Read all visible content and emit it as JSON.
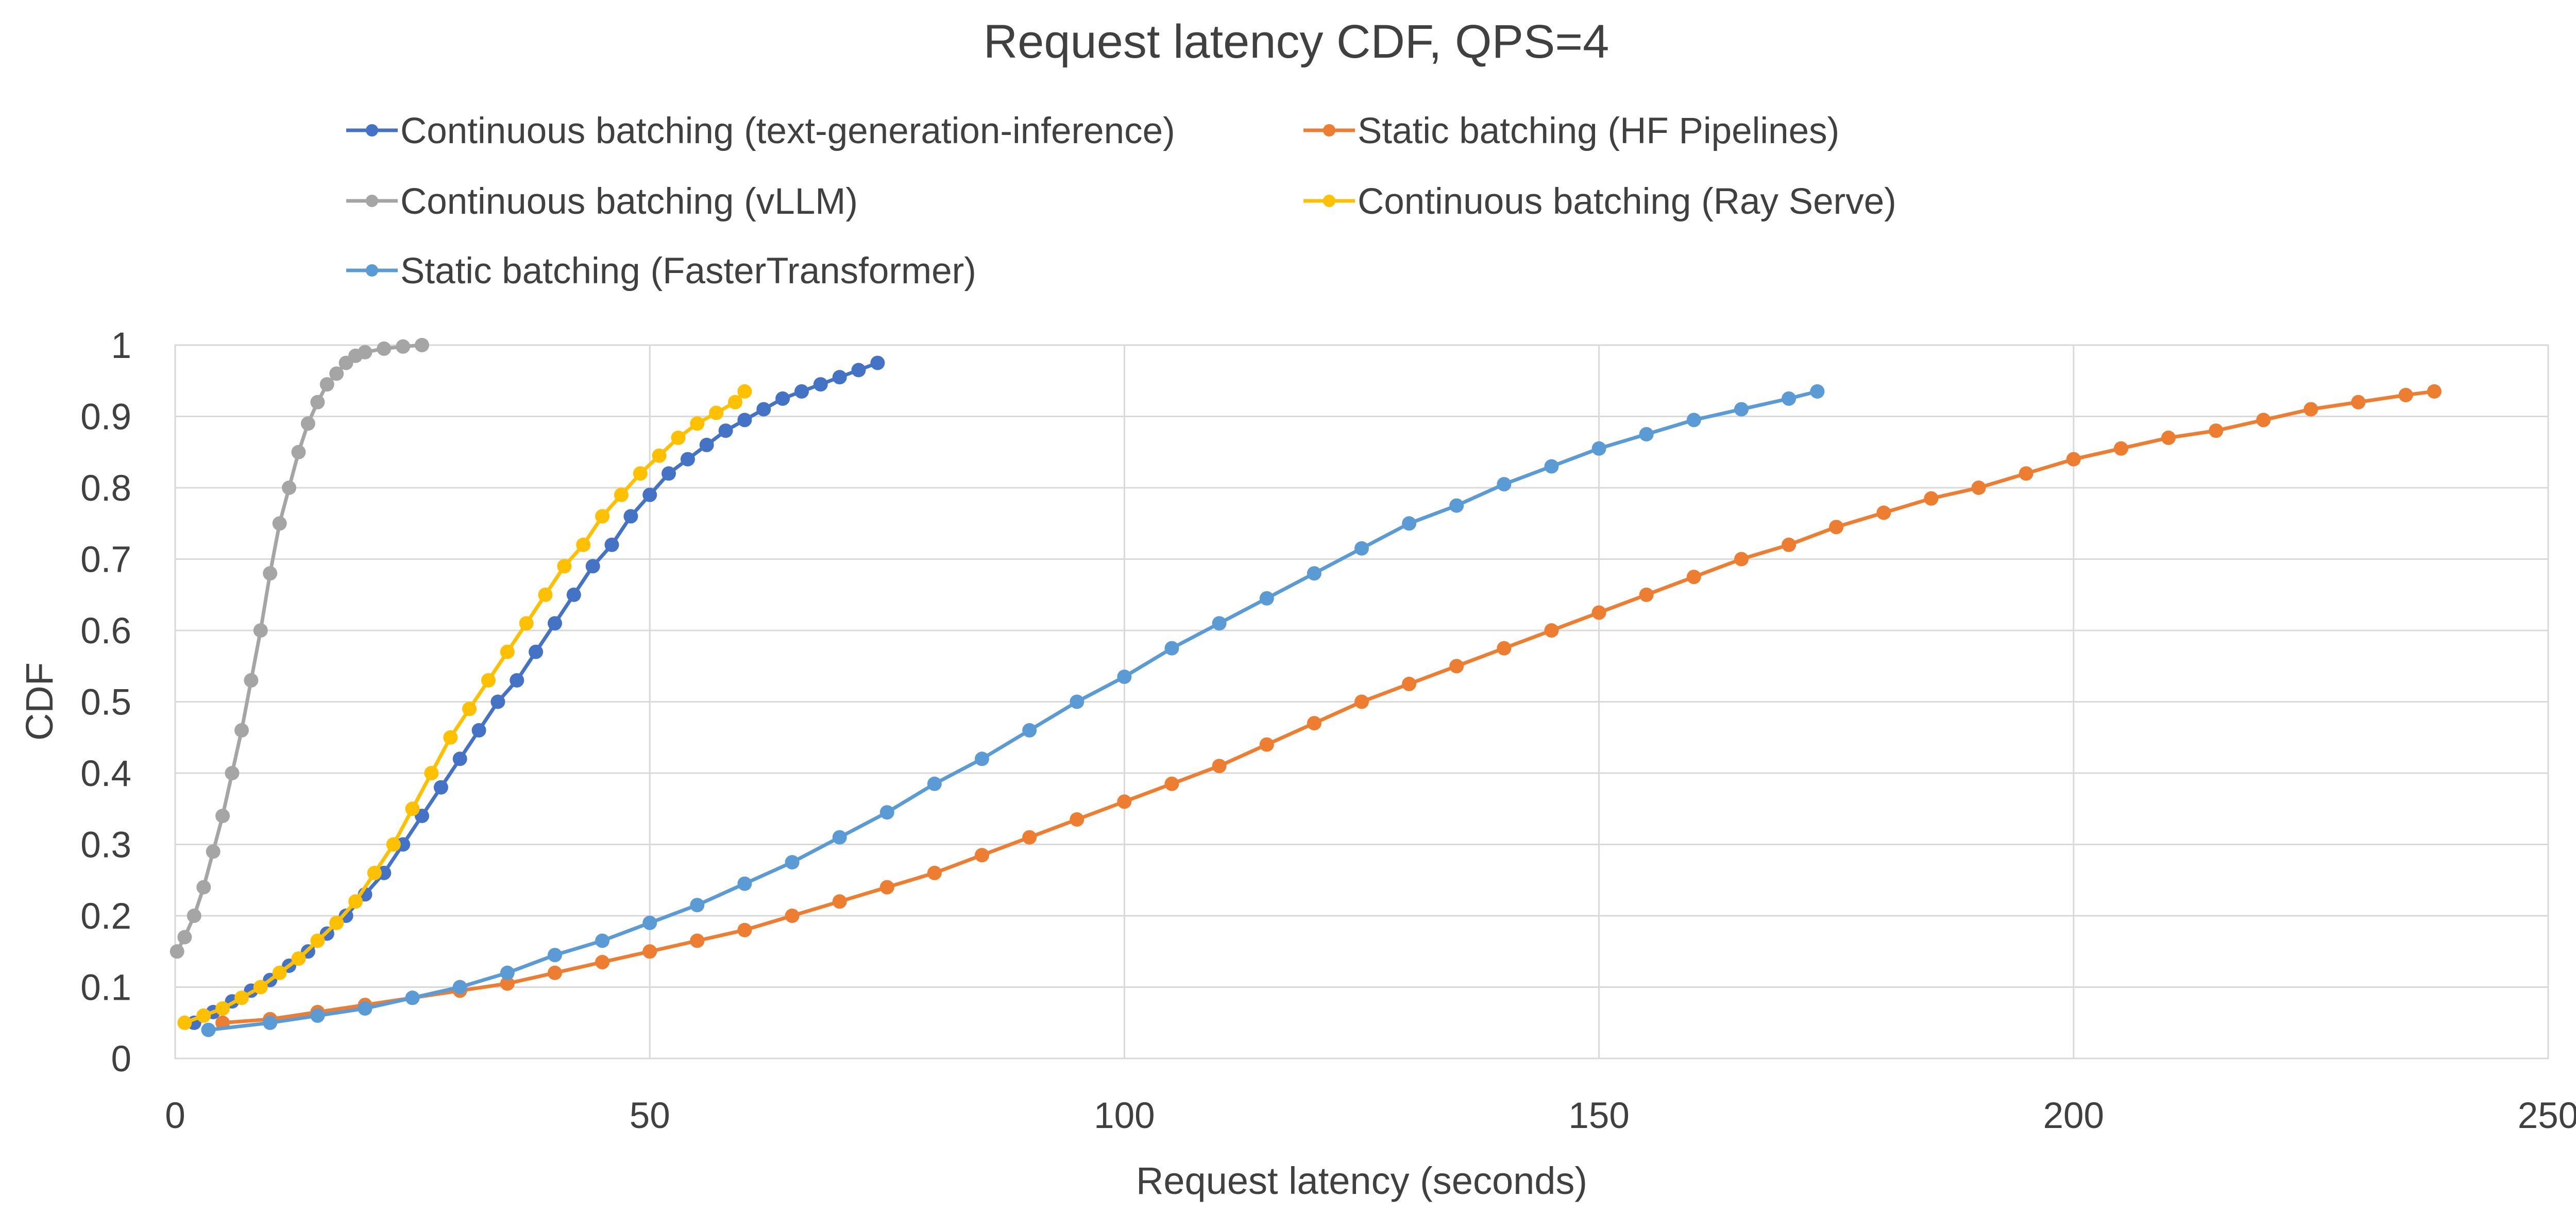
{
  "chart_data": {
    "type": "line",
    "title": "Request latency CDF, QPS=4",
    "xlabel": "Request latency (seconds)",
    "ylabel": "CDF",
    "xlim": [
      0,
      250
    ],
    "ylim": [
      0,
      1
    ],
    "x_ticks": [
      "0",
      "50",
      "100",
      "150",
      "200",
      "250"
    ],
    "y_ticks": [
      "0",
      "0.1",
      "0.2",
      "0.3",
      "0.4",
      "0.5",
      "0.6",
      "0.7",
      "0.8",
      "0.9",
      "1"
    ],
    "grid": true,
    "legend_position": "top",
    "series": [
      {
        "name": "Continuous batching (text-generation-inference)",
        "color": "#4472C4",
        "points": [
          [
            2,
            0.05
          ],
          [
            4,
            0.065
          ],
          [
            6,
            0.08
          ],
          [
            8,
            0.095
          ],
          [
            10,
            0.11
          ],
          [
            12,
            0.13
          ],
          [
            14,
            0.15
          ],
          [
            16,
            0.175
          ],
          [
            18,
            0.2
          ],
          [
            20,
            0.23
          ],
          [
            22,
            0.26
          ],
          [
            24,
            0.3
          ],
          [
            26,
            0.34
          ],
          [
            28,
            0.38
          ],
          [
            30,
            0.42
          ],
          [
            32,
            0.46
          ],
          [
            34,
            0.5
          ],
          [
            36,
            0.53
          ],
          [
            38,
            0.57
          ],
          [
            40,
            0.61
          ],
          [
            42,
            0.65
          ],
          [
            44,
            0.69
          ],
          [
            46,
            0.72
          ],
          [
            48,
            0.76
          ],
          [
            50,
            0.79
          ],
          [
            52,
            0.82
          ],
          [
            54,
            0.84
          ],
          [
            56,
            0.86
          ],
          [
            58,
            0.88
          ],
          [
            60,
            0.895
          ],
          [
            62,
            0.91
          ],
          [
            64,
            0.925
          ],
          [
            66,
            0.935
          ],
          [
            68,
            0.945
          ],
          [
            70,
            0.955
          ],
          [
            72,
            0.965
          ],
          [
            74,
            0.975
          ]
        ]
      },
      {
        "name": "Static batching (HF Pipelines)",
        "color": "#ED7D31",
        "points": [
          [
            5,
            0.05
          ],
          [
            10,
            0.055
          ],
          [
            15,
            0.065
          ],
          [
            20,
            0.075
          ],
          [
            25,
            0.085
          ],
          [
            30,
            0.095
          ],
          [
            35,
            0.105
          ],
          [
            40,
            0.12
          ],
          [
            45,
            0.135
          ],
          [
            50,
            0.15
          ],
          [
            55,
            0.165
          ],
          [
            60,
            0.18
          ],
          [
            65,
            0.2
          ],
          [
            70,
            0.22
          ],
          [
            75,
            0.24
          ],
          [
            80,
            0.26
          ],
          [
            85,
            0.285
          ],
          [
            90,
            0.31
          ],
          [
            95,
            0.335
          ],
          [
            100,
            0.36
          ],
          [
            105,
            0.385
          ],
          [
            110,
            0.41
          ],
          [
            115,
            0.44
          ],
          [
            120,
            0.47
          ],
          [
            125,
            0.5
          ],
          [
            130,
            0.525
          ],
          [
            135,
            0.55
          ],
          [
            140,
            0.575
          ],
          [
            145,
            0.6
          ],
          [
            150,
            0.625
          ],
          [
            155,
            0.65
          ],
          [
            160,
            0.675
          ],
          [
            165,
            0.7
          ],
          [
            170,
            0.72
          ],
          [
            175,
            0.745
          ],
          [
            180,
            0.765
          ],
          [
            185,
            0.785
          ],
          [
            190,
            0.8
          ],
          [
            195,
            0.82
          ],
          [
            200,
            0.84
          ],
          [
            205,
            0.855
          ],
          [
            210,
            0.87
          ],
          [
            215,
            0.88
          ],
          [
            220,
            0.895
          ],
          [
            225,
            0.91
          ],
          [
            230,
            0.92
          ],
          [
            235,
            0.93
          ],
          [
            238,
            0.935
          ]
        ]
      },
      {
        "name": "Continuous batching (vLLM)",
        "color": "#A5A5A5",
        "points": [
          [
            0.2,
            0.15
          ],
          [
            1,
            0.17
          ],
          [
            2,
            0.2
          ],
          [
            3,
            0.24
          ],
          [
            4,
            0.29
          ],
          [
            5,
            0.34
          ],
          [
            6,
            0.4
          ],
          [
            7,
            0.46
          ],
          [
            8,
            0.53
          ],
          [
            9,
            0.6
          ],
          [
            10,
            0.68
          ],
          [
            11,
            0.75
          ],
          [
            12,
            0.8
          ],
          [
            13,
            0.85
          ],
          [
            14,
            0.89
          ],
          [
            15,
            0.92
          ],
          [
            16,
            0.945
          ],
          [
            17,
            0.96
          ],
          [
            18,
            0.975
          ],
          [
            19,
            0.985
          ],
          [
            20,
            0.99
          ],
          [
            22,
            0.995
          ],
          [
            24,
            0.998
          ],
          [
            26,
            1.0
          ]
        ]
      },
      {
        "name": "Continuous batching (Ray Serve)",
        "color": "#FFC000",
        "points": [
          [
            1,
            0.05
          ],
          [
            3,
            0.06
          ],
          [
            5,
            0.07
          ],
          [
            7,
            0.085
          ],
          [
            9,
            0.1
          ],
          [
            11,
            0.12
          ],
          [
            13,
            0.14
          ],
          [
            15,
            0.165
          ],
          [
            17,
            0.19
          ],
          [
            19,
            0.22
          ],
          [
            21,
            0.26
          ],
          [
            23,
            0.3
          ],
          [
            25,
            0.35
          ],
          [
            27,
            0.4
          ],
          [
            29,
            0.45
          ],
          [
            31,
            0.49
          ],
          [
            33,
            0.53
          ],
          [
            35,
            0.57
          ],
          [
            37,
            0.61
          ],
          [
            39,
            0.65
          ],
          [
            41,
            0.69
          ],
          [
            43,
            0.72
          ],
          [
            45,
            0.76
          ],
          [
            47,
            0.79
          ],
          [
            49,
            0.82
          ],
          [
            51,
            0.845
          ],
          [
            53,
            0.87
          ],
          [
            55,
            0.89
          ],
          [
            57,
            0.905
          ],
          [
            59,
            0.92
          ],
          [
            60,
            0.935
          ]
        ]
      },
      {
        "name": "Static batching (FasterTransformer)",
        "color": "#5B9BD5",
        "points": [
          [
            3.5,
            0.04
          ],
          [
            10,
            0.05
          ],
          [
            15,
            0.06
          ],
          [
            20,
            0.07
          ],
          [
            25,
            0.085
          ],
          [
            30,
            0.1
          ],
          [
            35,
            0.12
          ],
          [
            40,
            0.145
          ],
          [
            45,
            0.165
          ],
          [
            50,
            0.19
          ],
          [
            55,
            0.215
          ],
          [
            60,
            0.245
          ],
          [
            65,
            0.275
          ],
          [
            70,
            0.31
          ],
          [
            75,
            0.345
          ],
          [
            80,
            0.385
          ],
          [
            85,
            0.42
          ],
          [
            90,
            0.46
          ],
          [
            95,
            0.5
          ],
          [
            100,
            0.535
          ],
          [
            105,
            0.575
          ],
          [
            110,
            0.61
          ],
          [
            115,
            0.645
          ],
          [
            120,
            0.68
          ],
          [
            125,
            0.715
          ],
          [
            130,
            0.75
          ],
          [
            135,
            0.775
          ],
          [
            140,
            0.805
          ],
          [
            145,
            0.83
          ],
          [
            150,
            0.855
          ],
          [
            155,
            0.875
          ],
          [
            160,
            0.895
          ],
          [
            165,
            0.91
          ],
          [
            170,
            0.925
          ],
          [
            173,
            0.935
          ]
        ]
      }
    ]
  }
}
